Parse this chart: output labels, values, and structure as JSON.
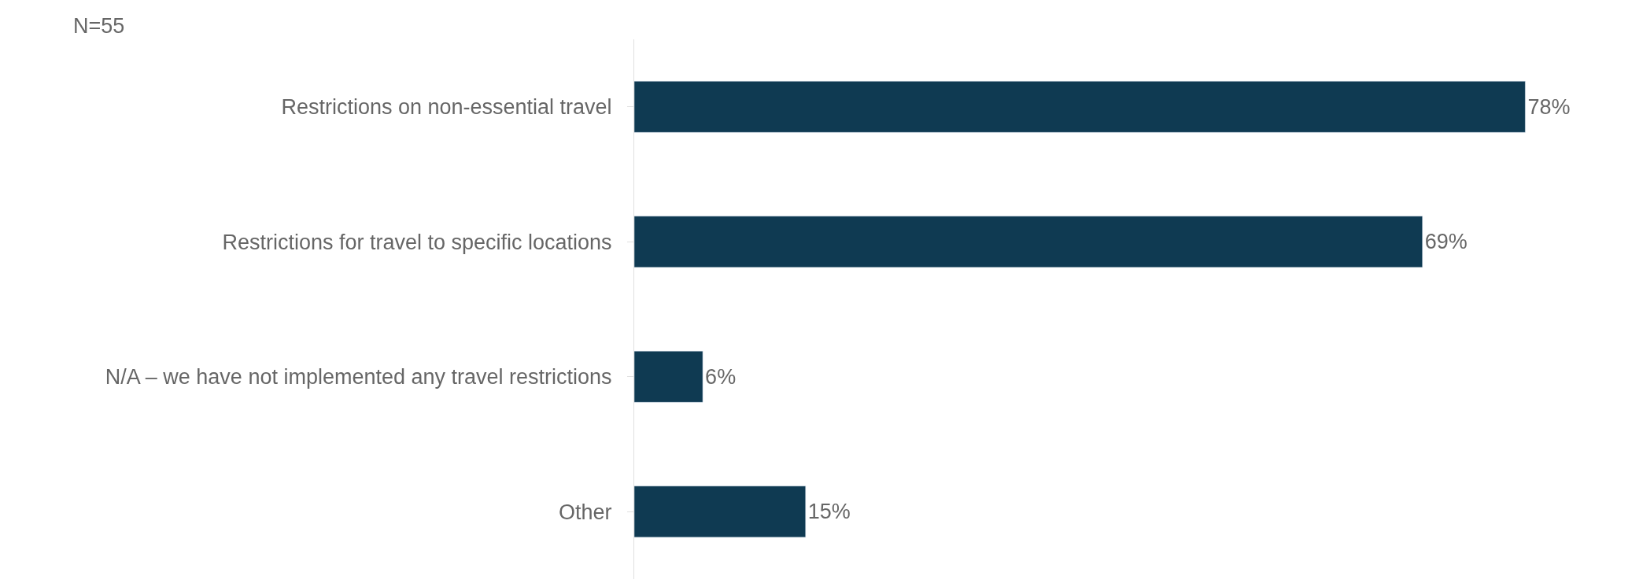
{
  "chart_data": {
    "type": "bar",
    "orientation": "horizontal",
    "categories": [
      "Restrictions on non-essential travel",
      "Restrictions for travel to specific locations",
      "N/A – we have not implemented any travel restrictions",
      "Other"
    ],
    "values": [
      78,
      69,
      6,
      15
    ],
    "color": "#0f3a52",
    "value_labels": [
      "78%",
      "69%",
      "6%",
      "15%"
    ],
    "annotations": [
      "N=55"
    ]
  }
}
